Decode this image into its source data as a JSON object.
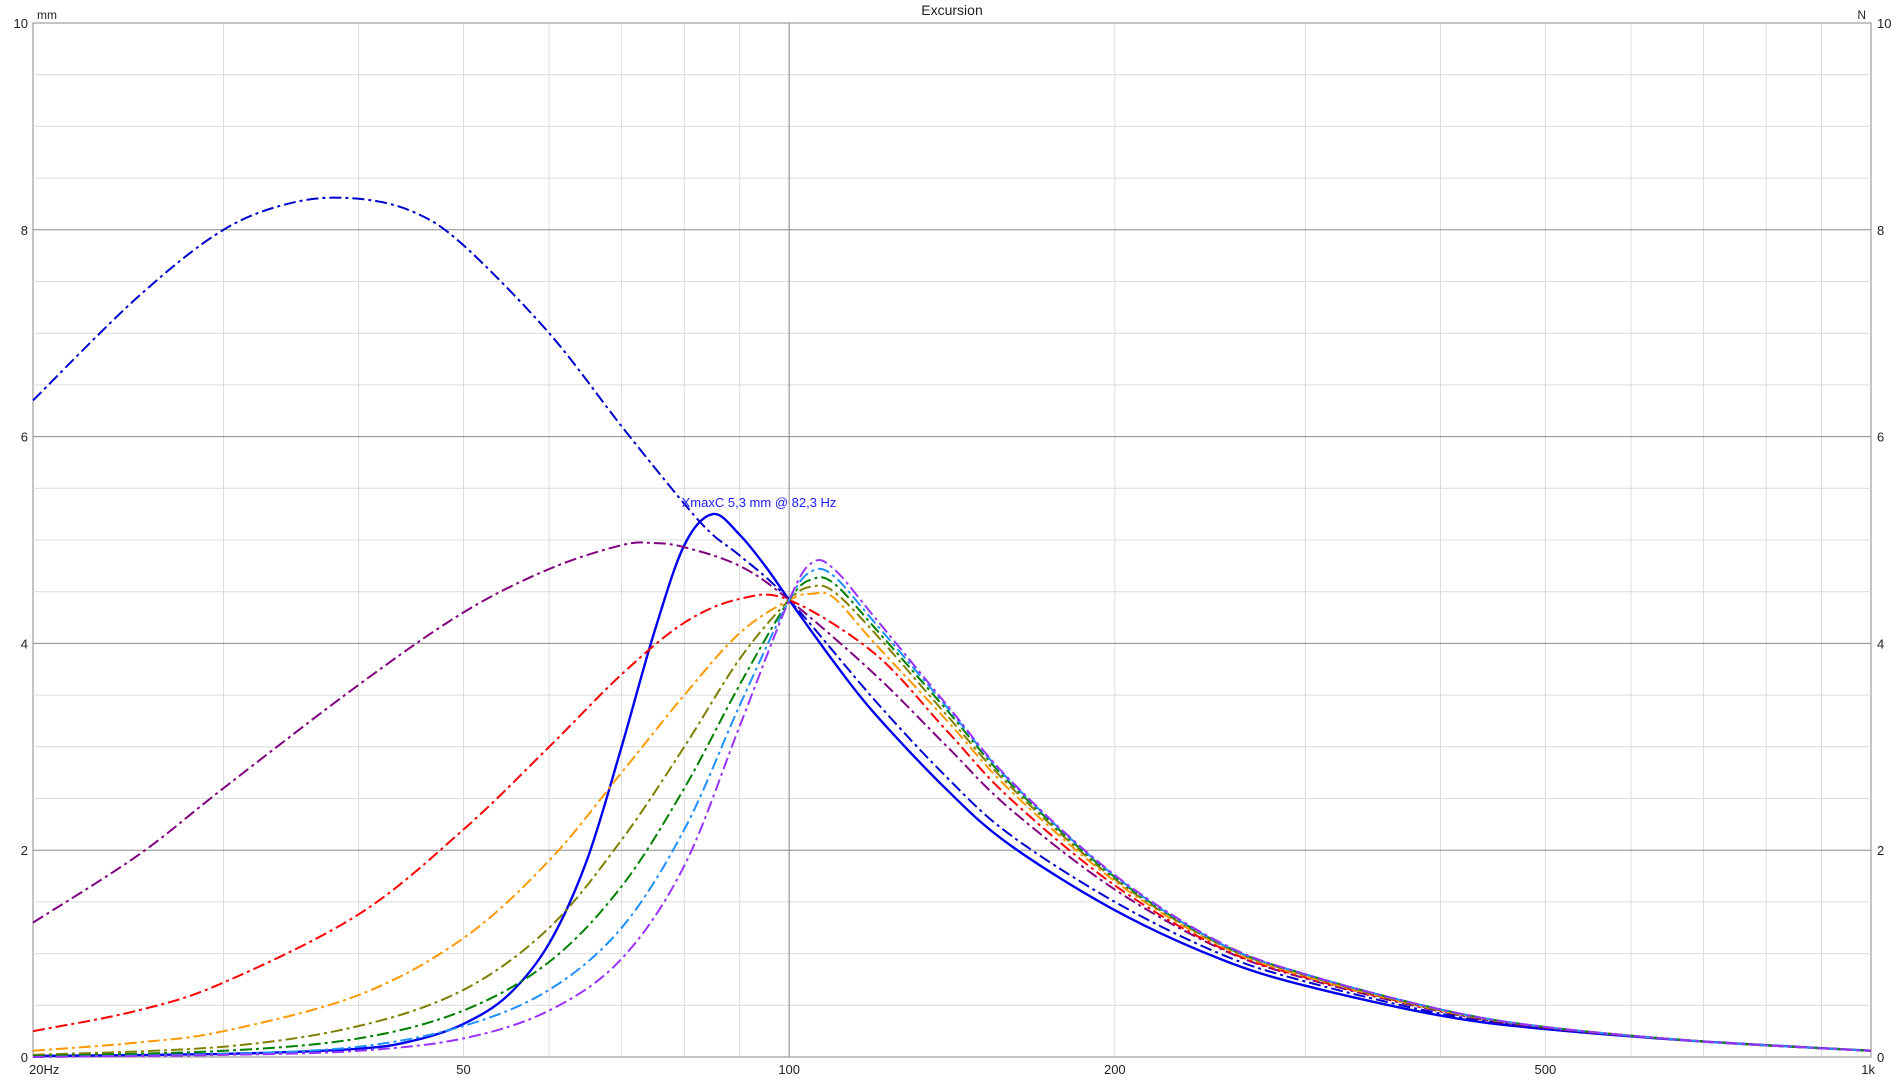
{
  "chart_data": {
    "type": "line",
    "title": "Excursion",
    "ylabel_left": "mm",
    "ylabel_right": "N",
    "x_scale": "log",
    "xlim": [
      20,
      1000
    ],
    "ylim": [
      0,
      10
    ],
    "grid": true,
    "x_ticks": [
      {
        "value": 20,
        "label": "20Hz"
      },
      {
        "value": 50,
        "label": "50"
      },
      {
        "value": 100,
        "label": "100"
      },
      {
        "value": 200,
        "label": "200"
      },
      {
        "value": 500,
        "label": "500"
      },
      {
        "value": 1000,
        "label": "1k"
      }
    ],
    "y_ticks": [
      {
        "value": 0,
        "label": "0"
      },
      {
        "value": 2,
        "label": "2"
      },
      {
        "value": 4,
        "label": "4"
      },
      {
        "value": 6,
        "label": "6"
      },
      {
        "value": 8,
        "label": "8"
      },
      {
        "value": 10,
        "label": "10"
      }
    ],
    "annotation": {
      "text": "XmaxC 5,3 mm  @ 82,3 Hz",
      "x": 82.3,
      "y": 5.3,
      "color": "#1a1aff"
    },
    "series": [
      {
        "color": "#0000ee",
        "dash": "solid",
        "x": [
          20,
          30,
          40,
          45,
          50,
          55,
          60,
          65,
          70,
          75,
          80,
          85,
          90,
          95,
          100,
          110,
          120,
          140,
          160,
          200,
          250,
          300,
          400,
          500,
          700,
          1000
        ],
        "y": [
          0.01,
          0.03,
          0.08,
          0.16,
          0.32,
          0.6,
          1.1,
          1.9,
          3.0,
          4.1,
          4.95,
          5.25,
          5.05,
          4.75,
          4.42,
          3.82,
          3.32,
          2.58,
          2.05,
          1.42,
          0.95,
          0.69,
          0.4,
          0.27,
          0.15,
          0.06
        ]
      },
      {
        "color": "#0000cc",
        "dash": "dashdot",
        "x": [
          20,
          25,
          30,
          35,
          40,
          45,
          50,
          60,
          70,
          80,
          85,
          90,
          100,
          120,
          140,
          160,
          200,
          250,
          300,
          400,
          500,
          700,
          1000
        ],
        "y": [
          6.35,
          7.35,
          8.0,
          8.27,
          8.3,
          8.17,
          7.85,
          7.0,
          6.1,
          5.35,
          5.05,
          4.85,
          4.42,
          3.45,
          2.7,
          2.15,
          1.5,
          1.0,
          0.73,
          0.42,
          0.28,
          0.15,
          0.06
        ]
      },
      {
        "color": "#800080",
        "dash": "dashdot",
        "x": [
          20,
          25,
          30,
          40,
          50,
          60,
          70,
          75,
          80,
          90,
          100,
          120,
          140,
          160,
          200,
          250,
          300,
          400,
          500,
          700,
          1000
        ],
        "y": [
          1.3,
          1.95,
          2.6,
          3.6,
          4.3,
          4.72,
          4.95,
          4.97,
          4.93,
          4.75,
          4.42,
          3.7,
          3.0,
          2.4,
          1.62,
          1.05,
          0.76,
          0.44,
          0.28,
          0.15,
          0.06
        ]
      },
      {
        "color": "#ff0000",
        "dash": "dashdot",
        "x": [
          20,
          25,
          30,
          40,
          50,
          60,
          70,
          80,
          90,
          100,
          120,
          140,
          160,
          200,
          250,
          300,
          400,
          500,
          700,
          1000
        ],
        "y": [
          0.25,
          0.45,
          0.72,
          1.38,
          2.2,
          3.0,
          3.7,
          4.2,
          4.43,
          4.42,
          3.9,
          3.15,
          2.5,
          1.66,
          1.06,
          0.77,
          0.45,
          0.29,
          0.15,
          0.06
        ]
      },
      {
        "color": "#ff9900",
        "dash": "dashdot",
        "x": [
          20,
          25,
          30,
          40,
          50,
          60,
          70,
          80,
          90,
          100,
          105,
          110,
          120,
          140,
          160,
          200,
          250,
          300,
          400,
          500,
          700,
          1000
        ],
        "y": [
          0.06,
          0.14,
          0.25,
          0.6,
          1.15,
          1.9,
          2.75,
          3.5,
          4.1,
          4.42,
          4.48,
          4.44,
          4.0,
          3.25,
          2.58,
          1.7,
          1.08,
          0.78,
          0.45,
          0.29,
          0.15,
          0.06
        ]
      },
      {
        "color": "#808000",
        "dash": "dashdot",
        "x": [
          20,
          30,
          40,
          50,
          60,
          70,
          80,
          90,
          100,
          105,
          110,
          120,
          140,
          160,
          200,
          250,
          300,
          400,
          500,
          700,
          1000
        ],
        "y": [
          0.02,
          0.1,
          0.3,
          0.65,
          1.25,
          2.1,
          3.0,
          3.85,
          4.42,
          4.55,
          4.5,
          4.1,
          3.3,
          2.62,
          1.72,
          1.09,
          0.79,
          0.45,
          0.29,
          0.15,
          0.06
        ]
      },
      {
        "color": "#008000",
        "dash": "dashdot",
        "x": [
          20,
          30,
          40,
          50,
          60,
          70,
          80,
          90,
          100,
          105,
          110,
          120,
          140,
          160,
          200,
          250,
          300,
          400,
          500,
          700,
          1000
        ],
        "y": [
          0.01,
          0.06,
          0.18,
          0.45,
          0.92,
          1.65,
          2.6,
          3.6,
          4.42,
          4.62,
          4.58,
          4.15,
          3.35,
          2.65,
          1.74,
          1.1,
          0.8,
          0.46,
          0.29,
          0.15,
          0.06
        ]
      },
      {
        "color": "#1e90ff",
        "dash": "dashdot",
        "x": [
          20,
          30,
          40,
          50,
          60,
          70,
          80,
          90,
          100,
          105,
          110,
          120,
          140,
          160,
          200,
          250,
          300,
          400,
          500,
          700,
          1000
        ],
        "y": [
          0.0,
          0.03,
          0.1,
          0.3,
          0.65,
          1.25,
          2.2,
          3.4,
          4.42,
          4.7,
          4.65,
          4.2,
          3.38,
          2.67,
          1.75,
          1.1,
          0.8,
          0.46,
          0.29,
          0.15,
          0.06
        ]
      },
      {
        "color": "#9933ff",
        "dash": "dashdot",
        "x": [
          20,
          30,
          40,
          50,
          60,
          70,
          80,
          90,
          100,
          105,
          110,
          120,
          140,
          160,
          200,
          250,
          300,
          400,
          500,
          700,
          1000
        ],
        "y": [
          0.0,
          0.02,
          0.06,
          0.18,
          0.45,
          0.95,
          1.85,
          3.2,
          4.42,
          4.78,
          4.72,
          4.25,
          3.4,
          2.68,
          1.76,
          1.11,
          0.8,
          0.46,
          0.29,
          0.15,
          0.06
        ]
      }
    ]
  }
}
